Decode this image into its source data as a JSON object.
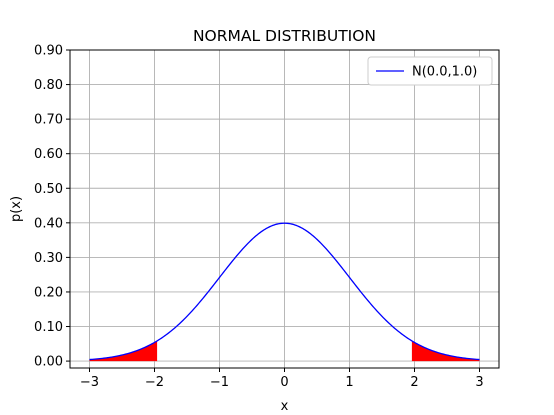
{
  "chart_data": {
    "type": "line",
    "title": "NORMAL DISTRIBUTION",
    "xlabel": "x",
    "ylabel": "p(x)",
    "xlim": [
      -3.3,
      3.3
    ],
    "ylim": [
      -0.02,
      0.9
    ],
    "xticks": [
      -3,
      -2,
      -1,
      0,
      1,
      2,
      3
    ],
    "xtick_labels": [
      "−3",
      "−2",
      "−1",
      "0",
      "1",
      "2",
      "3"
    ],
    "yticks": [
      0.0,
      0.1,
      0.2,
      0.3,
      0.4,
      0.5,
      0.6,
      0.7,
      0.8,
      0.9
    ],
    "ytick_labels": [
      "0.00",
      "0.10",
      "0.20",
      "0.30",
      "0.40",
      "0.50",
      "0.60",
      "0.70",
      "0.80",
      "0.90"
    ],
    "grid": true,
    "legend_position": "top-right",
    "series": [
      {
        "name": "N(0.0,1.0)",
        "color": "#0000ff",
        "function": "normal_pdf",
        "mean": 0.0,
        "std": 1.0,
        "x_range": [
          -3,
          3
        ]
      }
    ],
    "shaded_regions": [
      {
        "x_range": [
          -3,
          -1.96
        ],
        "color": "#ff0000"
      },
      {
        "x_range": [
          1.96,
          3
        ],
        "color": "#ff0000"
      }
    ]
  }
}
